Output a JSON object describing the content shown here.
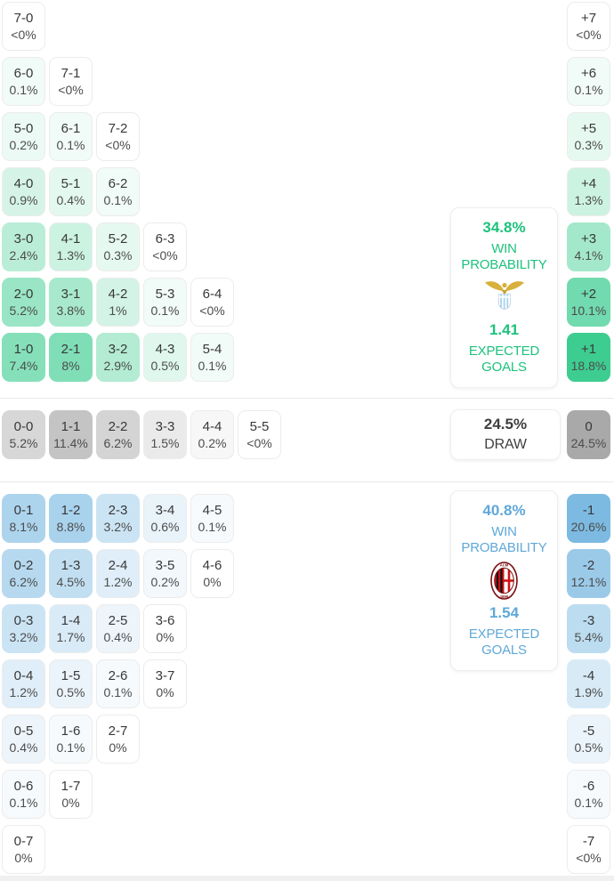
{
  "theme": {
    "home_cell_base": "#3dcd90",
    "home_text": "#1dc27d",
    "away_cell_base": "#7cbae2",
    "away_text": "#5fa8d9",
    "draw_cell_base": "#a9a9a9",
    "draw_text": "#3f3f3f",
    "score_text": "#383838",
    "pct_text": "#4c4c4c",
    "cell_border": "#ececec",
    "divider": "#e9e9e9",
    "bottom_strip": "#f0f0f0",
    "lazio_gold": "#d8b13c",
    "lazio_gold_dark": "#c9a233",
    "lazio_shield_blue": "#a9d3ee",
    "milan_red": "#d01317",
    "milan_dark": "#141414",
    "milan_border": "#7a1014"
  },
  "icons": {
    "home_team": "lazio-logo",
    "away_team": "ac-milan-logo"
  },
  "chart_data": {
    "type": "heatmap",
    "sections": {
      "home_win": {
        "score_rows": [
          [
            [
              "7-0",
              "<0%",
              0
            ]
          ],
          [
            [
              "6-0",
              "0.1%",
              0.1
            ],
            [
              "7-1",
              "<0%",
              0
            ]
          ],
          [
            [
              "5-0",
              "0.2%",
              0.2
            ],
            [
              "6-1",
              "0.1%",
              0.1
            ],
            [
              "7-2",
              "<0%",
              0
            ]
          ],
          [
            [
              "4-0",
              "0.9%",
              0.9
            ],
            [
              "5-1",
              "0.4%",
              0.4
            ],
            [
              "6-2",
              "0.1%",
              0.1
            ]
          ],
          [
            [
              "3-0",
              "2.4%",
              2.4
            ],
            [
              "4-1",
              "1.3%",
              1.3
            ],
            [
              "5-2",
              "0.3%",
              0.3
            ],
            [
              "6-3",
              "<0%",
              0
            ]
          ],
          [
            [
              "2-0",
              "5.2%",
              5.2
            ],
            [
              "3-1",
              "3.8%",
              3.8
            ],
            [
              "4-2",
              "1%",
              1.0
            ],
            [
              "5-3",
              "0.1%",
              0.1
            ],
            [
              "6-4",
              "<0%",
              0
            ]
          ],
          [
            [
              "1-0",
              "7.4%",
              7.4
            ],
            [
              "2-1",
              "8%",
              8.0
            ],
            [
              "3-2",
              "2.9%",
              2.9
            ],
            [
              "4-3",
              "0.5%",
              0.5
            ],
            [
              "5-4",
              "0.1%",
              0.1
            ]
          ]
        ],
        "goal_diff_cells": [
          [
            "+7",
            "<0%",
            0
          ],
          [
            "+6",
            "0.1%",
            0.1
          ],
          [
            "+5",
            "0.3%",
            0.3
          ],
          [
            "+4",
            "1.3%",
            1.3
          ],
          [
            "+3",
            "4.1%",
            4.1
          ],
          [
            "+2",
            "10.1%",
            10.1
          ],
          [
            "+1",
            "18.8%",
            18.8
          ]
        ],
        "summary": {
          "win_pct": "34.8%",
          "win_label": "WIN PROBABILITY",
          "xg": "1.41",
          "xg_label": "EXPECTED GOALS"
        }
      },
      "draw": {
        "score_cells": [
          [
            "0-0",
            "5.2%",
            5.2
          ],
          [
            "1-1",
            "11.4%",
            11.4
          ],
          [
            "2-2",
            "6.2%",
            6.2
          ],
          [
            "3-3",
            "1.5%",
            1.5
          ],
          [
            "4-4",
            "0.2%",
            0.2
          ],
          [
            "5-5",
            "<0%",
            0
          ]
        ],
        "goal_diff_cell": [
          "0",
          "24.5%",
          24.5
        ],
        "summary": {
          "pct": "24.5%",
          "label": "DRAW"
        }
      },
      "away_win": {
        "score_rows": [
          [
            [
              "0-1",
              "8.1%",
              8.1
            ],
            [
              "1-2",
              "8.8%",
              8.8
            ],
            [
              "2-3",
              "3.2%",
              3.2
            ],
            [
              "3-4",
              "0.6%",
              0.6
            ],
            [
              "4-5",
              "0.1%",
              0.1
            ]
          ],
          [
            [
              "0-2",
              "6.2%",
              6.2
            ],
            [
              "1-3",
              "4.5%",
              4.5
            ],
            [
              "2-4",
              "1.2%",
              1.2
            ],
            [
              "3-5",
              "0.2%",
              0.2
            ],
            [
              "4-6",
              "0%",
              0
            ]
          ],
          [
            [
              "0-3",
              "3.2%",
              3.2
            ],
            [
              "1-4",
              "1.7%",
              1.7
            ],
            [
              "2-5",
              "0.4%",
              0.4
            ],
            [
              "3-6",
              "0%",
              0
            ]
          ],
          [
            [
              "0-4",
              "1.2%",
              1.2
            ],
            [
              "1-5",
              "0.5%",
              0.5
            ],
            [
              "2-6",
              "0.1%",
              0.1
            ],
            [
              "3-7",
              "0%",
              0
            ]
          ],
          [
            [
              "0-5",
              "0.4%",
              0.4
            ],
            [
              "1-6",
              "0.1%",
              0.1
            ],
            [
              "2-7",
              "0%",
              0
            ]
          ],
          [
            [
              "0-6",
              "0.1%",
              0.1
            ],
            [
              "1-7",
              "0%",
              0
            ]
          ],
          [
            [
              "0-7",
              "0%",
              0
            ]
          ]
        ],
        "goal_diff_cells": [
          [
            "-1",
            "20.6%",
            20.6
          ],
          [
            "-2",
            "12.1%",
            12.1
          ],
          [
            "-3",
            "5.4%",
            5.4
          ],
          [
            "-4",
            "1.9%",
            1.9
          ],
          [
            "-5",
            "0.5%",
            0.5
          ],
          [
            "-6",
            "0.1%",
            0.1
          ],
          [
            "-7",
            "<0%",
            0
          ]
        ],
        "summary": {
          "win_pct": "40.8%",
          "win_label": "WIN PROBABILITY",
          "xg": "1.54",
          "xg_label": "EXPECTED GOALS"
        }
      }
    }
  }
}
